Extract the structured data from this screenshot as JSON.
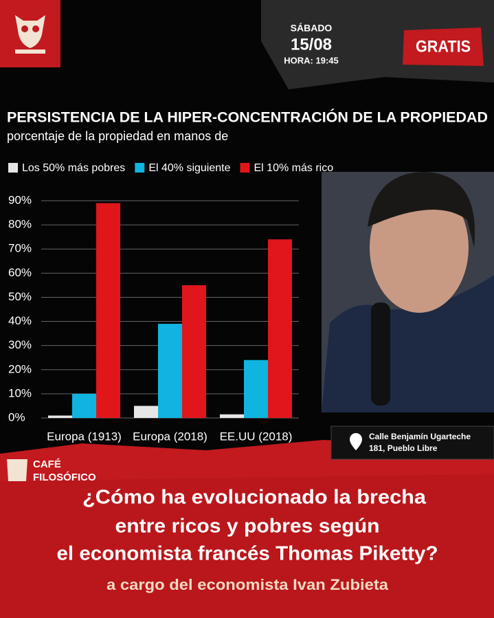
{
  "event": {
    "day": "SÁBADO",
    "date": "15/08",
    "time": "HORA: 19:45",
    "price": "GRATIS",
    "address_line1": "Calle Benjamín Ugarteche",
    "address_line2": "181, Pueblo Libre",
    "brand_line1": "CAFÉ",
    "brand_line2": "FILOSÓFICO",
    "headline": [
      "¿Cómo ha evolucionado la brecha",
      "entre ricos y pobres según",
      "el economista francés Thomas Piketty?"
    ],
    "speaker": "a cargo del economista Ivan Zubieta"
  },
  "chart_data": {
    "type": "bar",
    "title": "PERSISTENCIA DE LA HIPER-CONCENTRACIÓN DE LA PROPIEDAD",
    "subtitle": "porcentaje de la propiedad en manos de",
    "categories": [
      "Europa (1913)",
      "Europa (2018)",
      "EE.UU (2018)"
    ],
    "series": [
      {
        "name": "Los 50% más pobres",
        "color": "#e6e6e6",
        "values": [
          1,
          5,
          1.5
        ]
      },
      {
        "name": "El 40% siguiente",
        "color": "#10b4e0",
        "values": [
          10,
          39,
          24
        ]
      },
      {
        "name": "El 10% más rico",
        "color": "#e0161b",
        "values": [
          89,
          55,
          74
        ]
      }
    ],
    "ylim": [
      0,
      90
    ],
    "yticks": [
      {
        "value": 0,
        "label": "0%"
      },
      {
        "value": 10,
        "label": "10%"
      },
      {
        "value": 20,
        "label": "20%"
      },
      {
        "value": 30,
        "label": "30%"
      },
      {
        "value": 40,
        "label": "40%"
      },
      {
        "value": 50,
        "label": "50%"
      },
      {
        "value": 60,
        "label": "60%"
      },
      {
        "value": 70,
        "label": "70%"
      },
      {
        "value": 80,
        "label": "80%"
      },
      {
        "value": 90,
        "label": "90%"
      }
    ],
    "grid": true
  }
}
